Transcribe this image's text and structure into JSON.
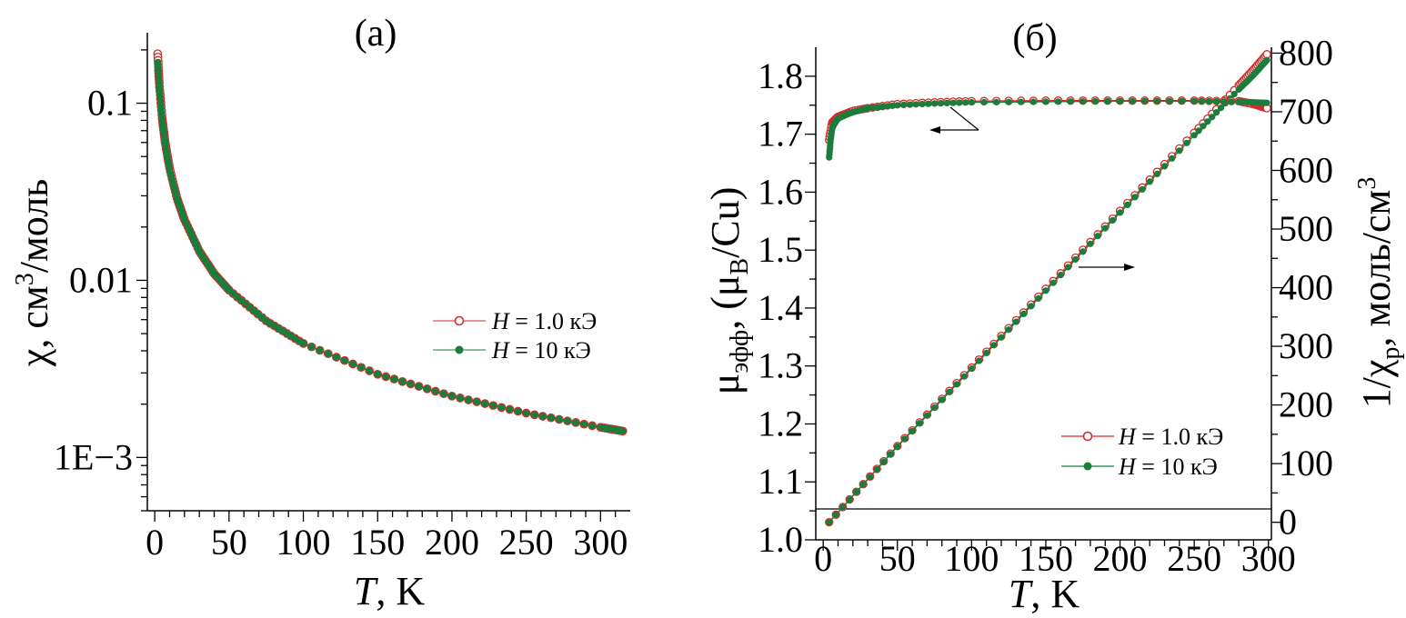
{
  "colors": {
    "red": "#d42a2a",
    "green": "#1a7d3c",
    "axis": "#000000"
  },
  "chart_data": [
    {
      "type": "scatter",
      "title": "(a)",
      "xlabel_italic": "T",
      "xlabel_unit": ", K",
      "ylabel_pre": "χ, см",
      "ylabel_sup": "3",
      "ylabel_post": "/моль",
      "xlim": [
        -5,
        320
      ],
      "ylim": [
        0.0005,
        0.25
      ],
      "yscale": "log",
      "grid": false,
      "legend_position": "center-right",
      "x_ticks": [
        0,
        50,
        100,
        150,
        200,
        250,
        300
      ],
      "x_tick_labels": [
        "0",
        "50",
        "100",
        "150",
        "200",
        "250",
        "300"
      ],
      "y_ticks": [
        0.1,
        0.01,
        0.001
      ],
      "y_tick_labels": [
        "0.1",
        "0.01",
        "1E−3"
      ],
      "series": [
        {
          "name_italic": "H",
          "name_rest": " = 1.0 кЭ",
          "marker": "open-circle",
          "color": "red",
          "x": [
            2,
            3,
            5,
            7,
            10,
            15,
            20,
            30,
            40,
            50,
            75,
            100,
            150,
            200,
            250,
            300,
            315
          ],
          "y": [
            0.19,
            0.13,
            0.082,
            0.06,
            0.043,
            0.029,
            0.022,
            0.0146,
            0.0109,
            0.0088,
            0.0059,
            0.0044,
            0.00295,
            0.00222,
            0.00178,
            0.00148,
            0.00141
          ]
        },
        {
          "name_italic": "H",
          "name_rest": " = 10 кЭ",
          "marker": "filled-circle",
          "color": "green",
          "x": [
            2,
            3,
            5,
            7,
            10,
            15,
            20,
            30,
            40,
            50,
            75,
            100,
            150,
            200,
            250,
            300,
            315
          ],
          "y": [
            0.17,
            0.125,
            0.08,
            0.059,
            0.042,
            0.029,
            0.022,
            0.0146,
            0.0109,
            0.0088,
            0.0059,
            0.0044,
            0.00295,
            0.00222,
            0.00178,
            0.00148,
            0.00141
          ]
        }
      ]
    },
    {
      "type": "scatter",
      "title": "(б)",
      "xlabel_italic": "T",
      "xlabel_unit": ", K",
      "ylabel_left": "μ",
      "ylabel_left_sub": "эфф",
      "ylabel_left_mid": ", (μ",
      "ylabel_left_sub2": "B",
      "ylabel_left_post": "/Cu)",
      "ylabel_right_pre": "1/χ",
      "ylabel_right_sub": "p",
      "ylabel_right_post": ", моль/см",
      "ylabel_right_sup": "3",
      "xlim": [
        -5,
        302
      ],
      "ylim_left": [
        1.0,
        1.85
      ],
      "ylim_right": [
        -30,
        810
      ],
      "grid": false,
      "legend_position": "lower-right",
      "x_ticks": [
        0,
        50,
        100,
        150,
        200,
        250,
        300
      ],
      "x_tick_labels": [
        "0",
        "50",
        "100",
        "150",
        "200",
        "250",
        "300"
      ],
      "y_left_ticks": [
        1.0,
        1.1,
        1.2,
        1.3,
        1.4,
        1.5,
        1.6,
        1.7,
        1.8
      ],
      "y_left_tick_labels": [
        "1.0",
        "1.1",
        "1.2",
        "1.3",
        "1.4",
        "1.5",
        "1.6",
        "1.7",
        "1.8"
      ],
      "y_right_ticks": [
        0,
        100,
        200,
        300,
        400,
        500,
        600,
        700,
        800
      ],
      "y_right_tick_labels": [
        "0",
        "100",
        "200",
        "300",
        "400",
        "500",
        "600",
        "700",
        "800"
      ],
      "series_mu": [
        {
          "name_italic": "H",
          "name_rest": " = 1.0 кЭ",
          "marker": "open-circle",
          "color": "red",
          "x": [
            4,
            6,
            8,
            10,
            15,
            20,
            30,
            50,
            75,
            100,
            150,
            200,
            250,
            280,
            290,
            295,
            299
          ],
          "y": [
            1.69,
            1.72,
            1.725,
            1.73,
            1.735,
            1.74,
            1.745,
            1.752,
            1.755,
            1.757,
            1.758,
            1.758,
            1.758,
            1.757,
            1.752,
            1.748,
            1.745
          ]
        },
        {
          "name_italic": "H",
          "name_rest": " = 10 кЭ",
          "marker": "filled-circle",
          "color": "green",
          "x": [
            4,
            5,
            6,
            8,
            10,
            15,
            20,
            30,
            50,
            75,
            100,
            150,
            200,
            250,
            280,
            290,
            299
          ],
          "y": [
            1.66,
            1.69,
            1.71,
            1.72,
            1.727,
            1.733,
            1.738,
            1.745,
            1.75,
            1.753,
            1.755,
            1.756,
            1.757,
            1.757,
            1.756,
            1.755,
            1.754
          ]
        }
      ],
      "series_inv_chi": [
        {
          "series": "H = 1.0 кЭ",
          "color": "red",
          "x": [
            4,
            50,
            100,
            150,
            200,
            250,
            280,
            290,
            299
          ],
          "y": [
            0,
            130,
            264,
            398,
            531,
            664,
            745,
            772,
            798
          ]
        },
        {
          "series": "H = 10 кЭ",
          "color": "green",
          "x": [
            4,
            50,
            100,
            150,
            200,
            250,
            280,
            290,
            299
          ],
          "y": [
            0,
            129,
            262,
            395,
            528,
            660,
            738,
            763,
            788
          ]
        }
      ],
      "annotations": [
        {
          "arrow": "left",
          "refers_to": "left-axis"
        },
        {
          "arrow": "right",
          "refers_to": "right-axis"
        }
      ]
    }
  ]
}
